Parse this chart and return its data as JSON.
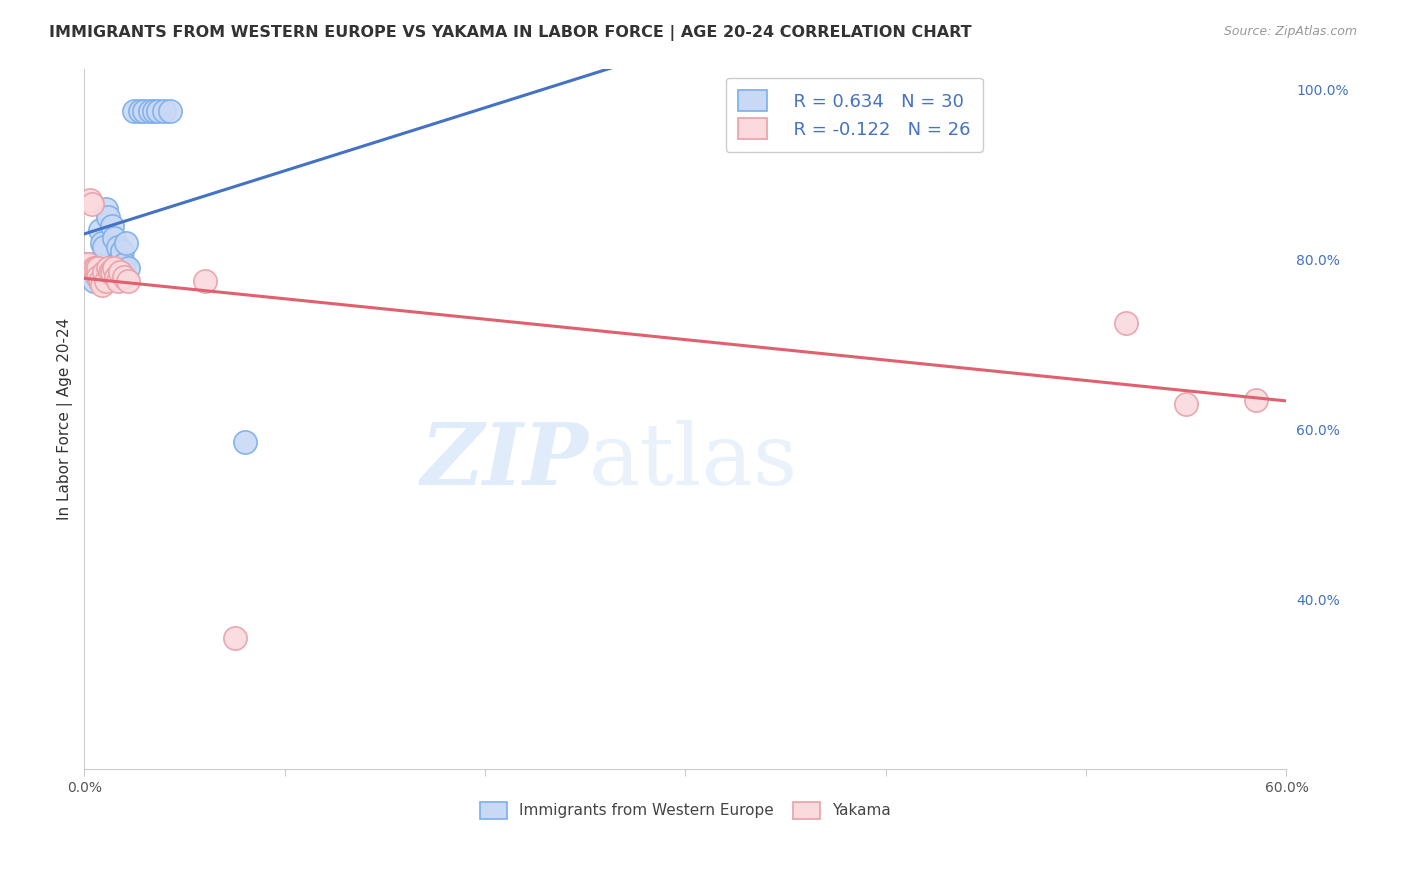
{
  "title": "IMMIGRANTS FROM WESTERN EUROPE VS YAKAMA IN LABOR FORCE | AGE 20-24 CORRELATION CHART",
  "source": "Source: ZipAtlas.com",
  "ylabel": "In Labor Force | Age 20-24",
  "right_yticks": [
    1.0,
    0.8,
    0.6,
    0.4
  ],
  "right_ytick_labels": [
    "100.0%",
    "80.0%",
    "60.0%",
    "40.0%"
  ],
  "watermark_zip": "ZIP",
  "watermark_atlas": "atlas",
  "legend_blue_r": "R = 0.634",
  "legend_blue_n": "N = 30",
  "legend_pink_r": "R = -0.122",
  "legend_pink_n": "N = 26",
  "legend_label_blue": "Immigrants from Western Europe",
  "legend_label_pink": "Yakama",
  "blue_fill_color": "#c9d9f5",
  "blue_edge_color": "#7baee8",
  "pink_fill_color": "#fadadd",
  "pink_edge_color": "#e8a0a8",
  "blue_line_color": "#4472c4",
  "pink_line_color": "#e06070",
  "blue_dots": [
    [
      0.0,
      0.795
    ],
    [
      0.003,
      0.795
    ],
    [
      0.004,
      0.785
    ],
    [
      0.005,
      0.775
    ],
    [
      0.006,
      0.79
    ],
    [
      0.007,
      0.78
    ],
    [
      0.008,
      0.835
    ],
    [
      0.009,
      0.82
    ],
    [
      0.01,
      0.815
    ],
    [
      0.011,
      0.86
    ],
    [
      0.012,
      0.85
    ],
    [
      0.013,
      0.79
    ],
    [
      0.014,
      0.84
    ],
    [
      0.015,
      0.825
    ],
    [
      0.016,
      0.795
    ],
    [
      0.017,
      0.815
    ],
    [
      0.018,
      0.79
    ],
    [
      0.019,
      0.81
    ],
    [
      0.02,
      0.795
    ],
    [
      0.021,
      0.82
    ],
    [
      0.022,
      0.79
    ],
    [
      0.025,
      0.975
    ],
    [
      0.028,
      0.975
    ],
    [
      0.03,
      0.975
    ],
    [
      0.033,
      0.975
    ],
    [
      0.035,
      0.975
    ],
    [
      0.037,
      0.975
    ],
    [
      0.04,
      0.975
    ],
    [
      0.043,
      0.975
    ],
    [
      0.08,
      0.585
    ]
  ],
  "pink_dots": [
    [
      0.0,
      0.795
    ],
    [
      0.002,
      0.795
    ],
    [
      0.003,
      0.87
    ],
    [
      0.004,
      0.865
    ],
    [
      0.005,
      0.79
    ],
    [
      0.006,
      0.79
    ],
    [
      0.007,
      0.79
    ],
    [
      0.007,
      0.78
    ],
    [
      0.008,
      0.775
    ],
    [
      0.009,
      0.77
    ],
    [
      0.01,
      0.785
    ],
    [
      0.011,
      0.775
    ],
    [
      0.012,
      0.79
    ],
    [
      0.013,
      0.785
    ],
    [
      0.014,
      0.785
    ],
    [
      0.015,
      0.79
    ],
    [
      0.016,
      0.78
    ],
    [
      0.017,
      0.775
    ],
    [
      0.018,
      0.785
    ],
    [
      0.02,
      0.78
    ],
    [
      0.022,
      0.775
    ],
    [
      0.06,
      0.775
    ],
    [
      0.075,
      0.355
    ],
    [
      0.52,
      0.725
    ],
    [
      0.55,
      0.63
    ],
    [
      0.585,
      0.635
    ]
  ],
  "xmin": 0.0,
  "xmax": 0.6,
  "ymin": 0.2,
  "ymax": 1.025,
  "grid_color": "#dddddd",
  "text_color": "#333333",
  "axis_color": "#cccccc",
  "source_color": "#999999",
  "right_tick_color": "#4472c4",
  "bottom_tick_color": "#555555"
}
